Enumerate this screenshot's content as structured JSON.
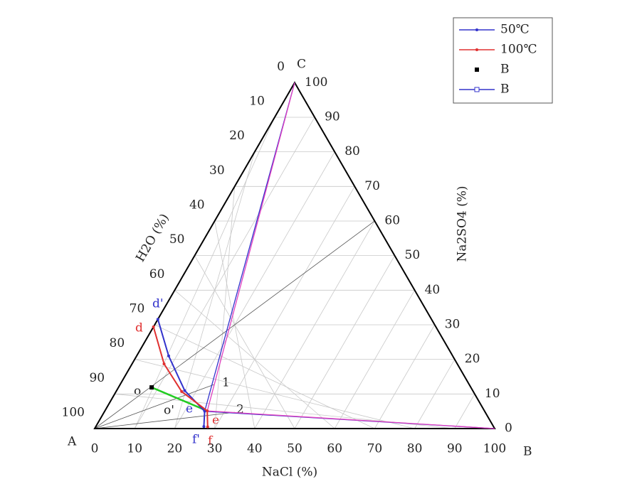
{
  "chart_data": {
    "type": "ternary",
    "vertex_labels": {
      "A": "A",
      "B": "B",
      "C": "C"
    },
    "axis_labels": {
      "bottom": "NaCl (%)",
      "left": "H2O (%)",
      "right": "Na2SO4 (%)"
    },
    "ticks": [
      0,
      10,
      20,
      30,
      40,
      50,
      60,
      70,
      80,
      90,
      100
    ],
    "grid": true,
    "series": [
      {
        "name": "50℃",
        "color": "#3333cc",
        "points": [
          [
            0,
            31.6
          ],
          [
            8,
            21
          ],
          [
            17,
            11
          ],
          [
            25,
            5
          ],
          [
            27,
            0.6
          ]
        ]
      },
      {
        "name": "100℃",
        "color": "#e03030",
        "points": [
          [
            0,
            29.4
          ],
          [
            8,
            18.7
          ],
          [
            16.4,
            10.7
          ],
          [
            25.6,
            5.1
          ],
          [
            28,
            0.5
          ]
        ]
      }
    ],
    "tie_lines": [
      {
        "color": "#3333cc",
        "points": [
          [
            25,
            5
          ],
          [
            0,
            100
          ]
        ]
      },
      {
        "color": "#3333cc",
        "points": [
          [
            25,
            5
          ],
          [
            100,
            0
          ]
        ]
      },
      {
        "color": "#e040c0",
        "points": [
          [
            25.6,
            5.1
          ],
          [
            0,
            100
          ]
        ]
      },
      {
        "color": "#e040c0",
        "points": [
          [
            25.6,
            5.1
          ],
          [
            100,
            0
          ]
        ]
      },
      {
        "color": "#22cc22",
        "points": [
          [
            8.3,
            11.9
          ],
          [
            25.6,
            5.1
          ]
        ]
      }
    ],
    "reference_lines": [
      [
        23.4,
        12.7
      ],
      [
        32.7,
        4.7
      ],
      [
        40,
        60
      ]
    ],
    "marked_point": [
      8.3,
      11.9
    ],
    "legend": [
      {
        "name": "50℃",
        "color": "#3333cc",
        "marker": "dot"
      },
      {
        "name": "100℃",
        "color": "#e03030",
        "marker": "dot"
      },
      {
        "name": "B",
        "color": "#000000",
        "marker": "square"
      },
      {
        "name": "B",
        "color": "#3333cc",
        "marker": "open-square"
      }
    ],
    "annotations": [
      "d'",
      "d",
      "o",
      "o'",
      "e",
      "e",
      "f'",
      "f",
      "1",
      "2"
    ]
  }
}
